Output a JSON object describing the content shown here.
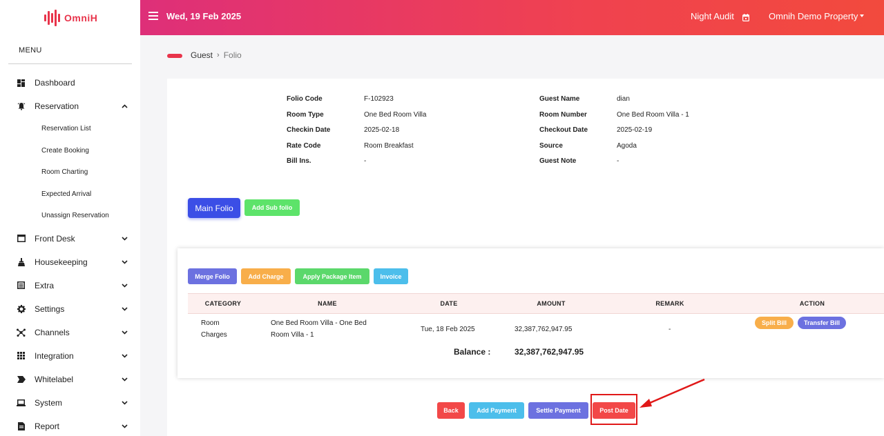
{
  "app": {
    "logo_text": "OmniH"
  },
  "sidebar": {
    "menu_title": "MENU",
    "items": [
      {
        "label": "Dashboard",
        "icon": "dashboard-icon"
      },
      {
        "label": "Reservation",
        "icon": "bell-icon",
        "expanded": true,
        "children": [
          "Reservation List",
          "Create Booking",
          "Room Charting",
          "Expected Arrival",
          "Unassign Reservation"
        ]
      },
      {
        "label": "Front Desk",
        "icon": "window-icon"
      },
      {
        "label": "Housekeeping",
        "icon": "broom-icon"
      },
      {
        "label": "Extra",
        "icon": "list-box-icon"
      },
      {
        "label": "Settings",
        "icon": "gear-icon"
      },
      {
        "label": "Channels",
        "icon": "network-icon"
      },
      {
        "label": "Integration",
        "icon": "grid-icon"
      },
      {
        "label": "Whitelabel",
        "icon": "label-icon"
      },
      {
        "label": "System",
        "icon": "laptop-icon"
      },
      {
        "label": "Report",
        "icon": "report-icon"
      }
    ]
  },
  "topbar": {
    "date": "Wed, 19 Feb 2025",
    "night_audit": "Night Audit",
    "property": "Omnih Demo Property"
  },
  "breadcrumb": {
    "root": "Guest",
    "current": "Folio"
  },
  "guest_info": {
    "left": [
      {
        "label": "Folio Code",
        "value": "F-102923"
      },
      {
        "label": "Room Type",
        "value": "One Bed Room Villa"
      },
      {
        "label": "Checkin Date",
        "value": "2025-02-18"
      },
      {
        "label": "Rate Code",
        "value": "Room Breakfast"
      },
      {
        "label": "Bill Ins.",
        "value": "-"
      }
    ],
    "right": [
      {
        "label": "Guest Name",
        "value": "dian"
      },
      {
        "label": "Room Number",
        "value": "One Bed Room Villa - 1"
      },
      {
        "label": "Checkout Date",
        "value": "2025-02-19"
      },
      {
        "label": "Source",
        "value": "Agoda"
      },
      {
        "label": "Guest Note",
        "value": "-"
      }
    ]
  },
  "folio_tabs": {
    "main": "Main Folio",
    "add_sub": "Add Sub folio"
  },
  "folio_actions": {
    "merge": "Merge Folio",
    "add_charge": "Add Charge",
    "apply_package": "Apply Package Item",
    "invoice": "Invoice"
  },
  "table": {
    "headers": [
      "CATEGORY",
      "NAME",
      "DATE",
      "AMOUNT",
      "REMARK",
      "ACTION"
    ],
    "rows": [
      {
        "category_line1": "Room",
        "category_line2": "Charges",
        "name_line1": "One Bed Room Villa - One Bed",
        "name_line2": "Room Villa - 1",
        "date": "Tue, 18 Feb 2025",
        "amount": "32,387,762,947.95",
        "remark": "-",
        "actions": {
          "split": "Split Bill",
          "transfer": "Transfer Bill"
        }
      }
    ],
    "balance_label": "Balance :",
    "balance_value": "32,387,762,947.95"
  },
  "footer_actions": {
    "back": "Back",
    "add_payment": "Add Payment",
    "settle_payment": "Settle Payment",
    "post_date": "Post Date"
  },
  "colors": {
    "brand": "#e8344b",
    "topbar_start": "#de2f79",
    "topbar_end": "#f24a3d",
    "primary": "#3b4ee6",
    "success": "#5de36a",
    "warning": "#f8ae4a",
    "info": "#4cbeeb",
    "indigo": "#6c71e0",
    "danger": "#f24848",
    "annotation": "#e01818"
  }
}
